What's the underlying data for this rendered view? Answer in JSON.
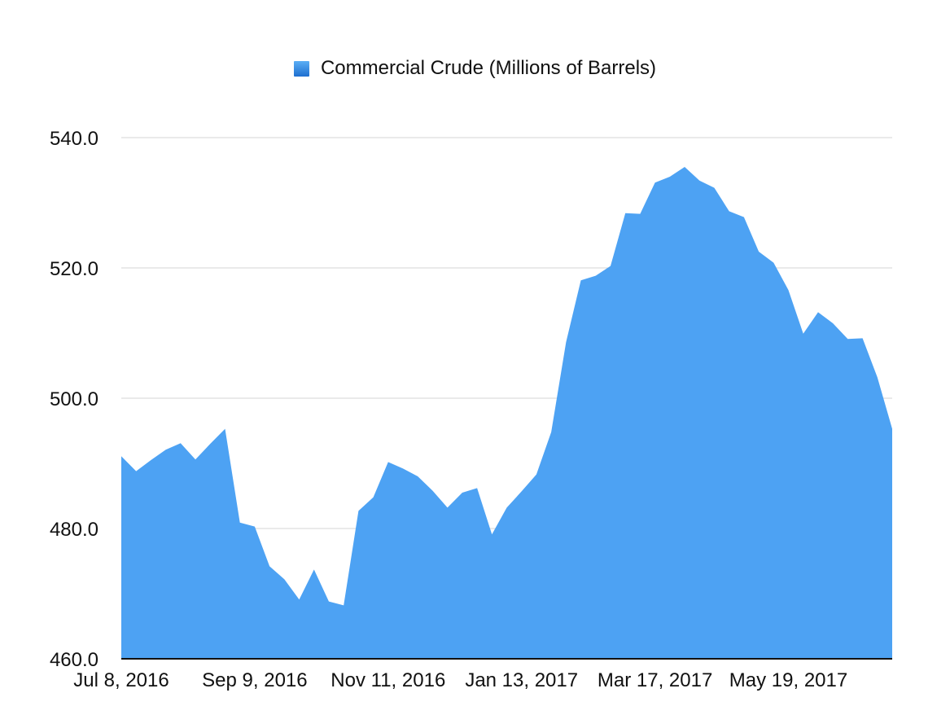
{
  "chart_data": {
    "type": "area",
    "title": "",
    "xlabel": "",
    "ylabel": "",
    "legend_position": "top-center",
    "grid": true,
    "ylim": [
      460,
      540
    ],
    "yticks": [
      "460.0",
      "480.0",
      "500.0",
      "520.0",
      "540.0"
    ],
    "xtick_labels": [
      "Jul 8, 2016",
      "Sep 9, 2016",
      "Nov 11, 2016",
      "Jan 13, 2017",
      "Mar 17, 2017",
      "May 19, 2017"
    ],
    "series": [
      {
        "name": "Commercial Crude (Millions of Barrels)",
        "color": "#4da2f3",
        "x_start": "2016-07-08",
        "frequency": "weekly",
        "values": [
          491.1,
          488.8,
          490.5,
          492.1,
          493.1,
          490.6,
          493.0,
          495.3,
          480.9,
          480.3,
          474.2,
          472.2,
          469.1,
          473.7,
          468.8,
          468.2,
          482.7,
          484.8,
          490.2,
          489.2,
          488.0,
          485.8,
          483.2,
          485.5,
          486.2,
          479.1,
          483.2,
          485.7,
          488.3,
          494.8,
          508.6,
          518.1,
          518.8,
          520.3,
          528.4,
          528.3,
          533.1,
          534.0,
          535.5,
          533.4,
          532.3,
          528.7,
          527.8,
          522.5,
          520.8,
          516.6,
          509.9,
          513.2,
          511.5,
          509.1,
          509.2,
          503.2,
          495.3
        ]
      }
    ]
  }
}
